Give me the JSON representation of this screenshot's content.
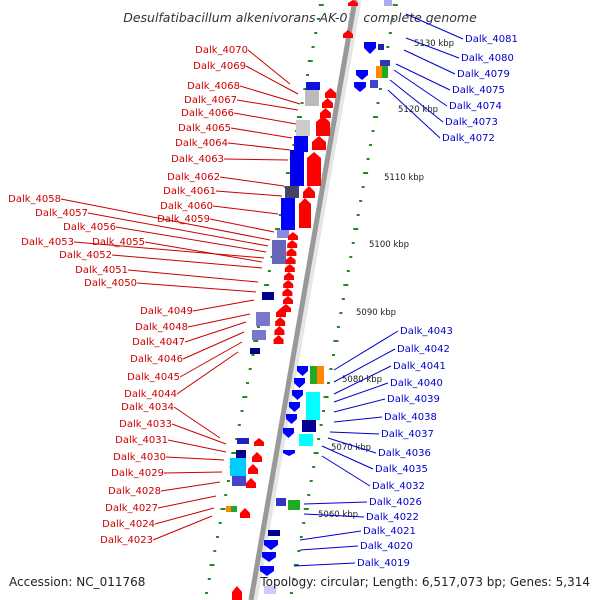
{
  "title": "Desulfatibacillum alkenivorans AK-01, complete genome",
  "footer": {
    "accession": "Accession: NC_011768",
    "summary": "Topology: circular; Length: 6,517,073 bp; Genes: 5,314"
  },
  "colors": {
    "left_label": "#cc0000",
    "right_label": "#0000cc",
    "forward_gene": "#ff0000",
    "reverse_gene": "#0000ff",
    "backbone": "#999999",
    "gc_dot": "#228b22"
  },
  "kbp_ticks": [
    "5130 kbp",
    "5120 kbp",
    "5110 kbp",
    "5100 kbp",
    "5090 kbp",
    "5080 kbp",
    "5070 kbp",
    "5060 kbp"
  ],
  "left_labels": [
    "Dalk_4070",
    "Dalk_4069",
    "Dalk_4068",
    "Dalk_4067",
    "Dalk_4066",
    "Dalk_4065",
    "Dalk_4064",
    "Dalk_4063",
    "Dalk_4062",
    "Dalk_4061",
    "Dalk_4060",
    "Dalk_4059",
    "Dalk_4058",
    "Dalk_4057",
    "Dalk_4056",
    "Dalk_4053",
    "Dalk_4055",
    "Dalk_4052",
    "Dalk_4051",
    "Dalk_4050",
    "Dalk_4049",
    "Dalk_4048",
    "Dalk_4047",
    "Dalk_4046",
    "Dalk_4045",
    "Dalk_4044",
    "Dalk_4034",
    "Dalk_4033",
    "Dalk_4031",
    "Dalk_4030",
    "Dalk_4029",
    "Dalk_4028",
    "Dalk_4027",
    "Dalk_4024",
    "Dalk_4023"
  ],
  "right_labels": [
    "Dalk_4081",
    "Dalk_4080",
    "Dalk_4079",
    "Dalk_4075",
    "Dalk_4074",
    "Dalk_4073",
    "Dalk_4072",
    "Dalk_4043",
    "Dalk_4042",
    "Dalk_4041",
    "Dalk_4040",
    "Dalk_4039",
    "Dalk_4038",
    "Dalk_4037",
    "Dalk_4036",
    "Dalk_4035",
    "Dalk_4032",
    "Dalk_4026",
    "Dalk_4022",
    "Dalk_4021",
    "Dalk_4020",
    "Dalk_4019"
  ]
}
